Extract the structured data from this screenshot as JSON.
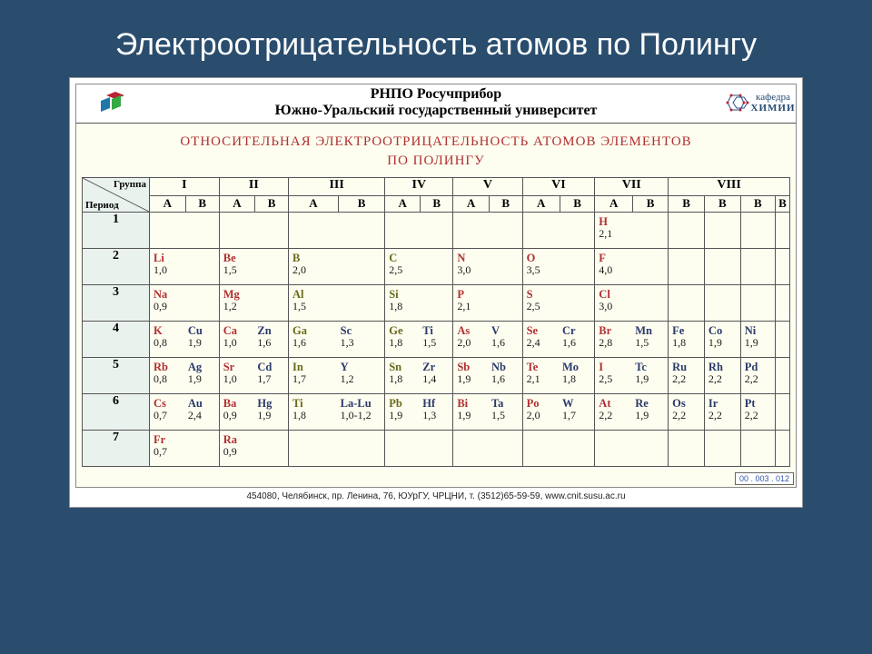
{
  "slide_title": "Электроотрицательность атомов по Полингу",
  "header": {
    "line1": "РНПО  Росучприбор",
    "line2": "Южно-Уральский государственный университет",
    "kafedra_top": "кафедра",
    "kafedra_bottom": "ХИМИИ"
  },
  "section_title_l1": "ОТНОСИТЕЛЬНАЯ  ЭЛЕКТРООТРИЦАТЕЛЬНОСТЬ  АТОМОВ  ЭЛЕМЕНТОВ",
  "section_title_l2": "ПО  ПОЛИНГУ",
  "corner": {
    "group": "Группа",
    "period": "Период"
  },
  "groups": [
    "I",
    "II",
    "III",
    "IV",
    "V",
    "VI",
    "VII",
    "VIII"
  ],
  "sub": [
    "A",
    "B",
    "A",
    "B",
    "A",
    "B",
    "A",
    "B",
    "A",
    "B",
    "A",
    "B",
    "A",
    "B",
    "B",
    "B",
    "B"
  ],
  "periods": [
    "1",
    "2",
    "3",
    "4",
    "5",
    "6",
    "7"
  ],
  "rows": {
    "1": [
      null,
      null,
      null,
      null,
      null,
      null,
      null,
      null,
      null,
      null,
      null,
      null,
      {
        "s": "H",
        "v": "2,1",
        "cls": ""
      },
      null,
      null,
      null,
      null
    ],
    "2": [
      {
        "s": "Li",
        "v": "1,0",
        "cls": ""
      },
      null,
      {
        "s": "Be",
        "v": "1,5",
        "cls": ""
      },
      null,
      {
        "s": "B",
        "v": "2,0",
        "cls": "olive"
      },
      null,
      {
        "s": "C",
        "v": "2,5",
        "cls": "olive"
      },
      null,
      {
        "s": "N",
        "v": "3,0",
        "cls": ""
      },
      null,
      {
        "s": "O",
        "v": "3,5",
        "cls": ""
      },
      null,
      {
        "s": "F",
        "v": "4,0",
        "cls": ""
      },
      null,
      null,
      null,
      null
    ],
    "3": [
      {
        "s": "Na",
        "v": "0,9",
        "cls": ""
      },
      null,
      {
        "s": "Mg",
        "v": "1,2",
        "cls": ""
      },
      null,
      {
        "s": "Al",
        "v": "1,5",
        "cls": "olive"
      },
      null,
      {
        "s": "Si",
        "v": "1,8",
        "cls": "olive"
      },
      null,
      {
        "s": "P",
        "v": "2,1",
        "cls": ""
      },
      null,
      {
        "s": "S",
        "v": "2,5",
        "cls": ""
      },
      null,
      {
        "s": "Cl",
        "v": "3,0",
        "cls": ""
      },
      null,
      null,
      null,
      null
    ],
    "4": [
      {
        "s": "K",
        "v": "0,8",
        "cls": ""
      },
      {
        "s": "Cu",
        "v": "1,9",
        "cls": "metal"
      },
      {
        "s": "Ca",
        "v": "1,0",
        "cls": ""
      },
      {
        "s": "Zn",
        "v": "1,6",
        "cls": "metal"
      },
      {
        "s": "Ga",
        "v": "1,6",
        "cls": "olive"
      },
      {
        "s": "Sc",
        "v": "1,3",
        "cls": "metal"
      },
      {
        "s": "Ge",
        "v": "1,8",
        "cls": "olive"
      },
      {
        "s": "Ti",
        "v": "1,5",
        "cls": "metal"
      },
      {
        "s": "As",
        "v": "2,0",
        "cls": ""
      },
      {
        "s": "V",
        "v": "1,6",
        "cls": "metal"
      },
      {
        "s": "Se",
        "v": "2,4",
        "cls": ""
      },
      {
        "s": "Cr",
        "v": "1,6",
        "cls": "metal"
      },
      {
        "s": "Br",
        "v": "2,8",
        "cls": ""
      },
      {
        "s": "Mn",
        "v": "1,5",
        "cls": "metal"
      },
      {
        "s": "Fe",
        "v": "1,8",
        "cls": "metal"
      },
      {
        "s": "Co",
        "v": "1,9",
        "cls": "metal"
      },
      {
        "s": "Ni",
        "v": "1,9",
        "cls": "metal"
      }
    ],
    "5": [
      {
        "s": "Rb",
        "v": "0,8",
        "cls": ""
      },
      {
        "s": "Ag",
        "v": "1,9",
        "cls": "metal"
      },
      {
        "s": "Sr",
        "v": "1,0",
        "cls": ""
      },
      {
        "s": "Cd",
        "v": "1,7",
        "cls": "metal"
      },
      {
        "s": "In",
        "v": "1,7",
        "cls": "olive"
      },
      {
        "s": "Y",
        "v": "1,2",
        "cls": "metal"
      },
      {
        "s": "Sn",
        "v": "1,8",
        "cls": "olive"
      },
      {
        "s": "Zr",
        "v": "1,4",
        "cls": "metal"
      },
      {
        "s": "Sb",
        "v": "1,9",
        "cls": ""
      },
      {
        "s": "Nb",
        "v": "1,6",
        "cls": "metal"
      },
      {
        "s": "Te",
        "v": "2,1",
        "cls": ""
      },
      {
        "s": "Mo",
        "v": "1,8",
        "cls": "metal"
      },
      {
        "s": "I",
        "v": "2,5",
        "cls": ""
      },
      {
        "s": "Tc",
        "v": "1,9",
        "cls": "metal"
      },
      {
        "s": "Ru",
        "v": "2,2",
        "cls": "metal"
      },
      {
        "s": "Rh",
        "v": "2,2",
        "cls": "metal"
      },
      {
        "s": "Pd",
        "v": "2,2",
        "cls": "metal"
      }
    ],
    "6": [
      {
        "s": "Cs",
        "v": "0,7",
        "cls": ""
      },
      {
        "s": "Au",
        "v": "2,4",
        "cls": "metal"
      },
      {
        "s": "Ba",
        "v": "0,9",
        "cls": ""
      },
      {
        "s": "Hg",
        "v": "1,9",
        "cls": "metal"
      },
      {
        "s": "Ti",
        "v": "1,8",
        "cls": "olive"
      },
      {
        "s": "La-Lu",
        "v": "1,0-1,2",
        "cls": "metal"
      },
      {
        "s": "Pb",
        "v": "1,9",
        "cls": "olive"
      },
      {
        "s": "Hf",
        "v": "1,3",
        "cls": "metal"
      },
      {
        "s": "Bi",
        "v": "1,9",
        "cls": ""
      },
      {
        "s": "Ta",
        "v": "1,5",
        "cls": "metal"
      },
      {
        "s": "Po",
        "v": "2,0",
        "cls": ""
      },
      {
        "s": "W",
        "v": "1,7",
        "cls": "metal"
      },
      {
        "s": "At",
        "v": "2,2",
        "cls": ""
      },
      {
        "s": "Re",
        "v": "1,9",
        "cls": "metal"
      },
      {
        "s": "Os",
        "v": "2,2",
        "cls": "metal"
      },
      {
        "s": "Ir",
        "v": "2,2",
        "cls": "metal"
      },
      {
        "s": "Pt",
        "v": "2,2",
        "cls": "metal"
      }
    ],
    "7": [
      {
        "s": "Fr",
        "v": "0,7",
        "cls": ""
      },
      null,
      {
        "s": "Ra",
        "v": "0,9",
        "cls": ""
      },
      null,
      null,
      null,
      null,
      null,
      null,
      null,
      null,
      null,
      null,
      null,
      null,
      null,
      null
    ]
  },
  "footer": "454080, Челябинск, пр. Ленина, 76, ЮУрГУ, ЧРЦНИ, т. (3512)65-59-59, www.cnit.susu.ac.ru",
  "code": "00 . 003 . 012",
  "col_widths": {
    "period_col": 74,
    "normal_half": 42,
    "v8_half": 38
  },
  "colors": {
    "bg": "#2a4d6e",
    "card_bg": "#ffffff",
    "table_bg": "#fdfdf0",
    "period_bg": "#eaf2ee",
    "border": "#555555",
    "sym_red": "#b03030",
    "sym_metal": "#2a3a6a",
    "sym_olive": "#6a6a1a",
    "title_white": "#ffffff"
  }
}
